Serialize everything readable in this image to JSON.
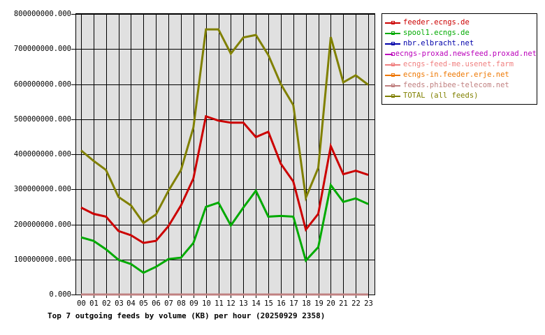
{
  "chart_data": {
    "type": "line",
    "title": "Top 7 outgoing feeds by volume (KB) per hour (20250929 2358)",
    "xlabel": "",
    "ylabel": "",
    "ylim": [
      0,
      800000000
    ],
    "grid": true,
    "legend_position": "right-top",
    "y_ticks": [
      "0.000",
      "100000000.000",
      "200000000.000",
      "300000000.000",
      "400000000.000",
      "500000000.000",
      "600000000.000",
      "700000000.000",
      "800000000.000"
    ],
    "categories": [
      "00",
      "01",
      "02",
      "03",
      "04",
      "05",
      "06",
      "07",
      "08",
      "09",
      "10",
      "11",
      "12",
      "13",
      "14",
      "15",
      "16",
      "17",
      "18",
      "19",
      "20",
      "21",
      "22",
      "23"
    ],
    "series": [
      {
        "name": "feeder.ecngs.de",
        "color": "#cc0000",
        "values": [
          248000000,
          230000000,
          222000000,
          181000000,
          169000000,
          147000000,
          153000000,
          195000000,
          254000000,
          331000000,
          508000000,
          496000000,
          490000000,
          490000000,
          449000000,
          464000000,
          373000000,
          322000000,
          185000000,
          230000000,
          423000000,
          343000000,
          353000000,
          341000000
        ]
      },
      {
        "name": "spool1.ecngs.de",
        "color": "#00aa00",
        "values": [
          163000000,
          153000000,
          129000000,
          99000000,
          87000000,
          62000000,
          79000000,
          101000000,
          105000000,
          147000000,
          250000000,
          262000000,
          197000000,
          248000000,
          296000000,
          222000000,
          224000000,
          222000000,
          97000000,
          135000000,
          312000000,
          264000000,
          274000000,
          258000000
        ]
      },
      {
        "name": "nbr.elbracht.net",
        "color": "#0000aa",
        "values": [
          0,
          0,
          0,
          0,
          0,
          0,
          0,
          0,
          0,
          0,
          0,
          0,
          0,
          0,
          0,
          0,
          0,
          0,
          0,
          0,
          0,
          0,
          0,
          0
        ]
      },
      {
        "name": "ecngs-proxad.newsfeed.proxad.net",
        "color": "#bb00bb",
        "values": [
          0,
          0,
          0,
          0,
          0,
          0,
          0,
          0,
          0,
          0,
          0,
          0,
          0,
          0,
          0,
          0,
          0,
          0,
          0,
          0,
          0,
          0,
          0,
          0
        ]
      },
      {
        "name": "ecngs-feed-me.usenet.farm",
        "color": "#f08080",
        "values": [
          0,
          0,
          0,
          0,
          0,
          0,
          0,
          0,
          0,
          0,
          0,
          0,
          0,
          0,
          0,
          0,
          0,
          0,
          0,
          0,
          0,
          0,
          0,
          0
        ]
      },
      {
        "name": "ecngs-in.feeder.erje.net",
        "color": "#ee7700",
        "values": [
          0,
          0,
          0,
          0,
          0,
          0,
          0,
          0,
          0,
          0,
          0,
          0,
          0,
          0,
          0,
          0,
          0,
          0,
          0,
          0,
          0,
          0,
          0,
          0
        ]
      },
      {
        "name": "feeds.phibee-telecom.net",
        "color": "#c08080",
        "values": [
          0,
          0,
          0,
          0,
          0,
          0,
          0,
          0,
          0,
          0,
          0,
          0,
          0,
          0,
          0,
          0,
          0,
          0,
          0,
          0,
          0,
          0,
          0,
          0
        ]
      },
      {
        "name": "TOTAL (all feeds)",
        "color": "#808000",
        "values": [
          411000000,
          381000000,
          355000000,
          278000000,
          254000000,
          204000000,
          228000000,
          296000000,
          355000000,
          476000000,
          756000000,
          756000000,
          687000000,
          733000000,
          740000000,
          683000000,
          600000000,
          540000000,
          276000000,
          361000000,
          734000000,
          605000000,
          625000000,
          598000000
        ]
      }
    ]
  },
  "colors": {
    "plot_background": "#e0e0e0",
    "grid": "#000000",
    "page_background": "#ffffff"
  }
}
